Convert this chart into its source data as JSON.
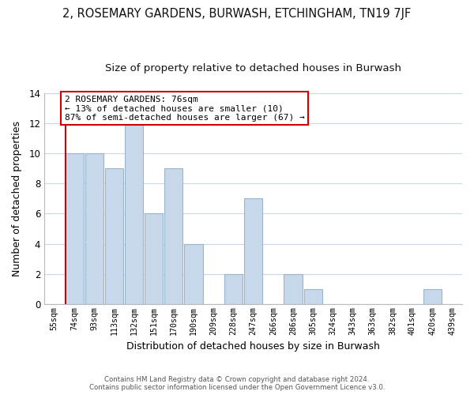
{
  "title": "2, ROSEMARY GARDENS, BURWASH, ETCHINGHAM, TN19 7JF",
  "subtitle": "Size of property relative to detached houses in Burwash",
  "xlabel": "Distribution of detached houses by size in Burwash",
  "ylabel": "Number of detached properties",
  "bar_labels": [
    "55sqm",
    "74sqm",
    "93sqm",
    "113sqm",
    "132sqm",
    "151sqm",
    "170sqm",
    "190sqm",
    "209sqm",
    "228sqm",
    "247sqm",
    "266sqm",
    "286sqm",
    "305sqm",
    "324sqm",
    "343sqm",
    "363sqm",
    "382sqm",
    "401sqm",
    "420sqm",
    "439sqm"
  ],
  "bar_values": [
    0,
    10,
    10,
    9,
    12,
    6,
    9,
    4,
    0,
    2,
    7,
    0,
    2,
    1,
    0,
    0,
    0,
    0,
    0,
    1,
    0
  ],
  "bar_color": "#c8d8eb",
  "bar_edge_color": "#9ab4cc",
  "highlight_color": "#cc0000",
  "ylim": [
    0,
    14
  ],
  "yticks": [
    0,
    2,
    4,
    6,
    8,
    10,
    12,
    14
  ],
  "annotation_title": "2 ROSEMARY GARDENS: 76sqm",
  "annotation_line1": "← 13% of detached houses are smaller (10)",
  "annotation_line2": "87% of semi-detached houses are larger (67) →",
  "annotation_box_color": "#ffffff",
  "annotation_box_edge": "#cc0000",
  "footnote1": "Contains HM Land Registry data © Crown copyright and database right 2024.",
  "footnote2": "Contains public sector information licensed under the Open Government Licence v3.0.",
  "grid_color": "#c8d8eb",
  "background_color": "#ffffff",
  "title_fontsize": 10.5,
  "subtitle_fontsize": 9.5
}
